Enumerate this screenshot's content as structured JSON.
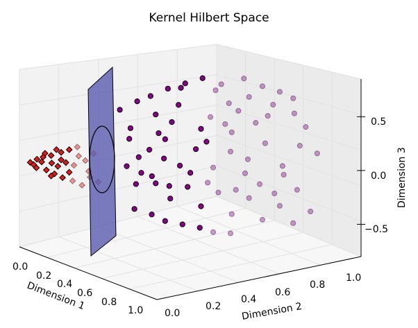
{
  "chart_data": {
    "type": "scatter",
    "projection": "3d",
    "title": "Kernel Hilbert Space",
    "xlabel": "Dimension 1",
    "ylabel": "Dimension 2",
    "zlabel": "Dimension 3",
    "xlim": [
      0.0,
      1.0
    ],
    "ylim": [
      0.0,
      1.0
    ],
    "zlim": [
      -0.8,
      0.85
    ],
    "xticks": [
      "0.0",
      "0.2",
      "0.4",
      "0.6",
      "0.8",
      "1.0"
    ],
    "yticks": [
      "0.0",
      "0.2",
      "0.4",
      "0.6",
      "0.8",
      "1.0"
    ],
    "zticks": [
      "−0.5",
      "0.0",
      "0.5"
    ],
    "grid": true,
    "series": [
      {
        "marker": "diamond",
        "color": "#e31a1c",
        "points": [
          [
            0.05,
            0.02,
            0.0
          ],
          [
            0.07,
            0.04,
            0.03
          ],
          [
            0.08,
            0.03,
            -0.04
          ],
          [
            0.1,
            0.05,
            0.06
          ],
          [
            0.11,
            0.06,
            -0.06
          ],
          [
            0.13,
            0.07,
            0.08
          ],
          [
            0.14,
            0.08,
            -0.09
          ],
          [
            0.16,
            0.1,
            0.11
          ],
          [
            0.17,
            0.1,
            -0.12
          ],
          [
            0.19,
            0.12,
            0.14
          ],
          [
            0.2,
            0.13,
            -0.15
          ],
          [
            0.22,
            0.14,
            0.17
          ],
          [
            0.24,
            0.15,
            -0.18
          ],
          [
            0.25,
            0.16,
            0.05
          ],
          [
            0.26,
            0.17,
            -0.05
          ],
          [
            0.09,
            0.05,
            0.01
          ],
          [
            0.12,
            0.08,
            0.0
          ],
          [
            0.15,
            0.09,
            -0.02
          ],
          [
            0.18,
            0.11,
            0.02
          ],
          [
            0.21,
            0.13,
            0.0
          ],
          [
            0.23,
            0.14,
            0.09
          ],
          [
            0.27,
            0.17,
            -0.1
          ],
          [
            0.06,
            0.03,
            -0.02
          ],
          [
            0.1,
            0.06,
            0.09
          ],
          [
            0.13,
            0.07,
            -0.11
          ],
          [
            0.16,
            0.1,
            0.04
          ],
          [
            0.19,
            0.12,
            -0.07
          ],
          [
            0.28,
            0.18,
            0.12
          ],
          [
            0.3,
            0.19,
            -0.14
          ],
          [
            0.14,
            0.09,
            0.13
          ]
        ]
      },
      {
        "marker": "circle",
        "color": "#8b008b",
        "points": [
          [
            0.3,
            0.3,
            0.48
          ],
          [
            0.34,
            0.36,
            0.55
          ],
          [
            0.38,
            0.4,
            0.6
          ],
          [
            0.42,
            0.46,
            0.66
          ],
          [
            0.46,
            0.52,
            0.7
          ],
          [
            0.5,
            0.58,
            0.74
          ],
          [
            0.36,
            0.44,
            0.4
          ],
          [
            0.44,
            0.5,
            0.5
          ],
          [
            0.4,
            0.54,
            0.62
          ],
          [
            0.55,
            0.64,
            0.68
          ],
          [
            0.6,
            0.72,
            0.72
          ],
          [
            0.48,
            0.66,
            0.58
          ],
          [
            0.62,
            0.8,
            0.62
          ],
          [
            0.52,
            0.7,
            0.46
          ],
          [
            0.58,
            0.76,
            0.52
          ],
          [
            0.66,
            0.86,
            0.56
          ],
          [
            0.32,
            0.34,
            0.3
          ],
          [
            0.42,
            0.48,
            0.34
          ],
          [
            0.5,
            0.62,
            0.36
          ],
          [
            0.56,
            0.72,
            0.4
          ],
          [
            0.64,
            0.84,
            0.44
          ],
          [
            0.7,
            0.9,
            0.5
          ],
          [
            0.46,
            0.6,
            0.24
          ],
          [
            0.6,
            0.78,
            0.28
          ],
          [
            0.68,
            0.92,
            0.34
          ],
          [
            0.4,
            0.46,
            0.18
          ],
          [
            0.54,
            0.7,
            0.2
          ],
          [
            0.72,
            0.95,
            0.22
          ],
          [
            0.32,
            0.36,
            -0.46
          ],
          [
            0.36,
            0.42,
            -0.52
          ],
          [
            0.4,
            0.46,
            -0.58
          ],
          [
            0.44,
            0.52,
            -0.62
          ],
          [
            0.48,
            0.58,
            -0.66
          ],
          [
            0.52,
            0.62,
            -0.7
          ],
          [
            0.56,
            0.68,
            -0.72
          ],
          [
            0.38,
            0.5,
            -0.4
          ],
          [
            0.46,
            0.6,
            -0.48
          ],
          [
            0.54,
            0.7,
            -0.56
          ],
          [
            0.62,
            0.8,
            -0.62
          ],
          [
            0.7,
            0.9,
            -0.66
          ],
          [
            0.42,
            0.56,
            -0.3
          ],
          [
            0.5,
            0.66,
            -0.36
          ],
          [
            0.58,
            0.76,
            -0.42
          ],
          [
            0.66,
            0.86,
            -0.5
          ],
          [
            0.74,
            0.96,
            -0.56
          ],
          [
            0.36,
            0.44,
            -0.24
          ],
          [
            0.48,
            0.62,
            -0.26
          ],
          [
            0.6,
            0.8,
            -0.3
          ],
          [
            0.7,
            0.92,
            -0.36
          ],
          [
            0.44,
            0.56,
            -0.16
          ],
          [
            0.58,
            0.74,
            -0.18
          ],
          [
            0.66,
            0.88,
            -0.22
          ],
          [
            0.35,
            0.3,
            -0.02
          ],
          [
            0.38,
            0.34,
            0.06
          ],
          [
            0.37,
            0.36,
            -0.1
          ],
          [
            0.4,
            0.38,
            0.12
          ],
          [
            0.39,
            0.4,
            -0.14
          ],
          [
            0.42,
            0.44,
            0.02
          ],
          [
            0.45,
            0.5,
            -0.06
          ],
          [
            0.48,
            0.56,
            0.08
          ],
          [
            0.52,
            0.62,
            -0.1
          ],
          [
            0.5,
            0.6,
            0.14
          ],
          [
            0.56,
            0.68,
            0.04
          ],
          [
            0.6,
            0.74,
            -0.04
          ],
          [
            0.64,
            0.8,
            0.1
          ],
          [
            0.68,
            0.86,
            -0.12
          ],
          [
            0.72,
            0.92,
            0.06
          ],
          [
            0.76,
            0.98,
            -0.02
          ],
          [
            0.34,
            0.32,
            0.22
          ],
          [
            0.36,
            0.34,
            -0.2
          ],
          [
            0.41,
            0.42,
            0.26
          ],
          [
            0.43,
            0.46,
            -0.24
          ],
          [
            0.55,
            0.66,
            0.3
          ],
          [
            0.57,
            0.7,
            -0.32
          ],
          [
            0.63,
            0.82,
            0.34
          ],
          [
            0.65,
            0.84,
            -0.38
          ]
        ]
      }
    ],
    "annotations": [
      {
        "type": "plane",
        "color": "#5757b0",
        "center": [
          0.3,
          0.3,
          0.0
        ]
      },
      {
        "type": "ellipse",
        "color": "#000000",
        "center": [
          0.3,
          0.3,
          0.0
        ]
      }
    ]
  }
}
